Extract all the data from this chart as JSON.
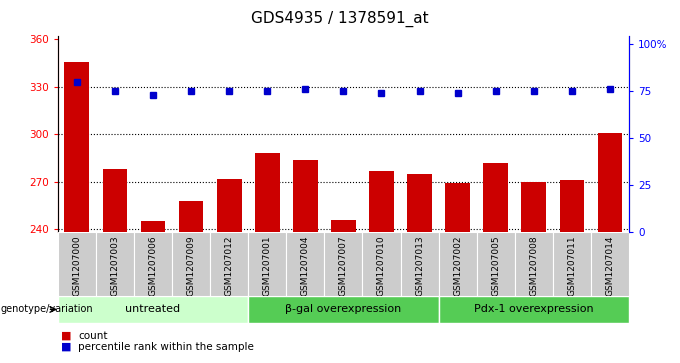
{
  "title": "GDS4935 / 1378591_at",
  "samples": [
    "GSM1207000",
    "GSM1207003",
    "GSM1207006",
    "GSM1207009",
    "GSM1207012",
    "GSM1207001",
    "GSM1207004",
    "GSM1207007",
    "GSM1207010",
    "GSM1207013",
    "GSM1207002",
    "GSM1207005",
    "GSM1207008",
    "GSM1207011",
    "GSM1207014"
  ],
  "counts": [
    346,
    278,
    245,
    258,
    272,
    288,
    284,
    246,
    277,
    275,
    269,
    282,
    270,
    271,
    301
  ],
  "percentiles": [
    80,
    75,
    73,
    75,
    75,
    75,
    76,
    75,
    74,
    75,
    74,
    75,
    75,
    75,
    76
  ],
  "groups": [
    {
      "label": "untreated",
      "start": 0,
      "end": 5,
      "color": "#ccffcc"
    },
    {
      "label": "β-gal overexpression",
      "start": 5,
      "end": 10,
      "color": "#55cc55"
    },
    {
      "label": "Pdx-1 overexpression",
      "start": 10,
      "end": 15,
      "color": "#55cc55"
    }
  ],
  "ylim_left": [
    238,
    362
  ],
  "ylim_right": [
    0,
    104
  ],
  "yticks_left": [
    240,
    270,
    300,
    330,
    360
  ],
  "yticks_right": [
    0,
    25,
    50,
    75,
    100
  ],
  "bar_color": "#cc0000",
  "dot_color": "#0000cc",
  "sample_bg_color": "#cccccc",
  "title_fontsize": 11,
  "legend_label_count": "count",
  "legend_label_percentile": "percentile rank within the sample",
  "genotype_label": "genotype/variation"
}
